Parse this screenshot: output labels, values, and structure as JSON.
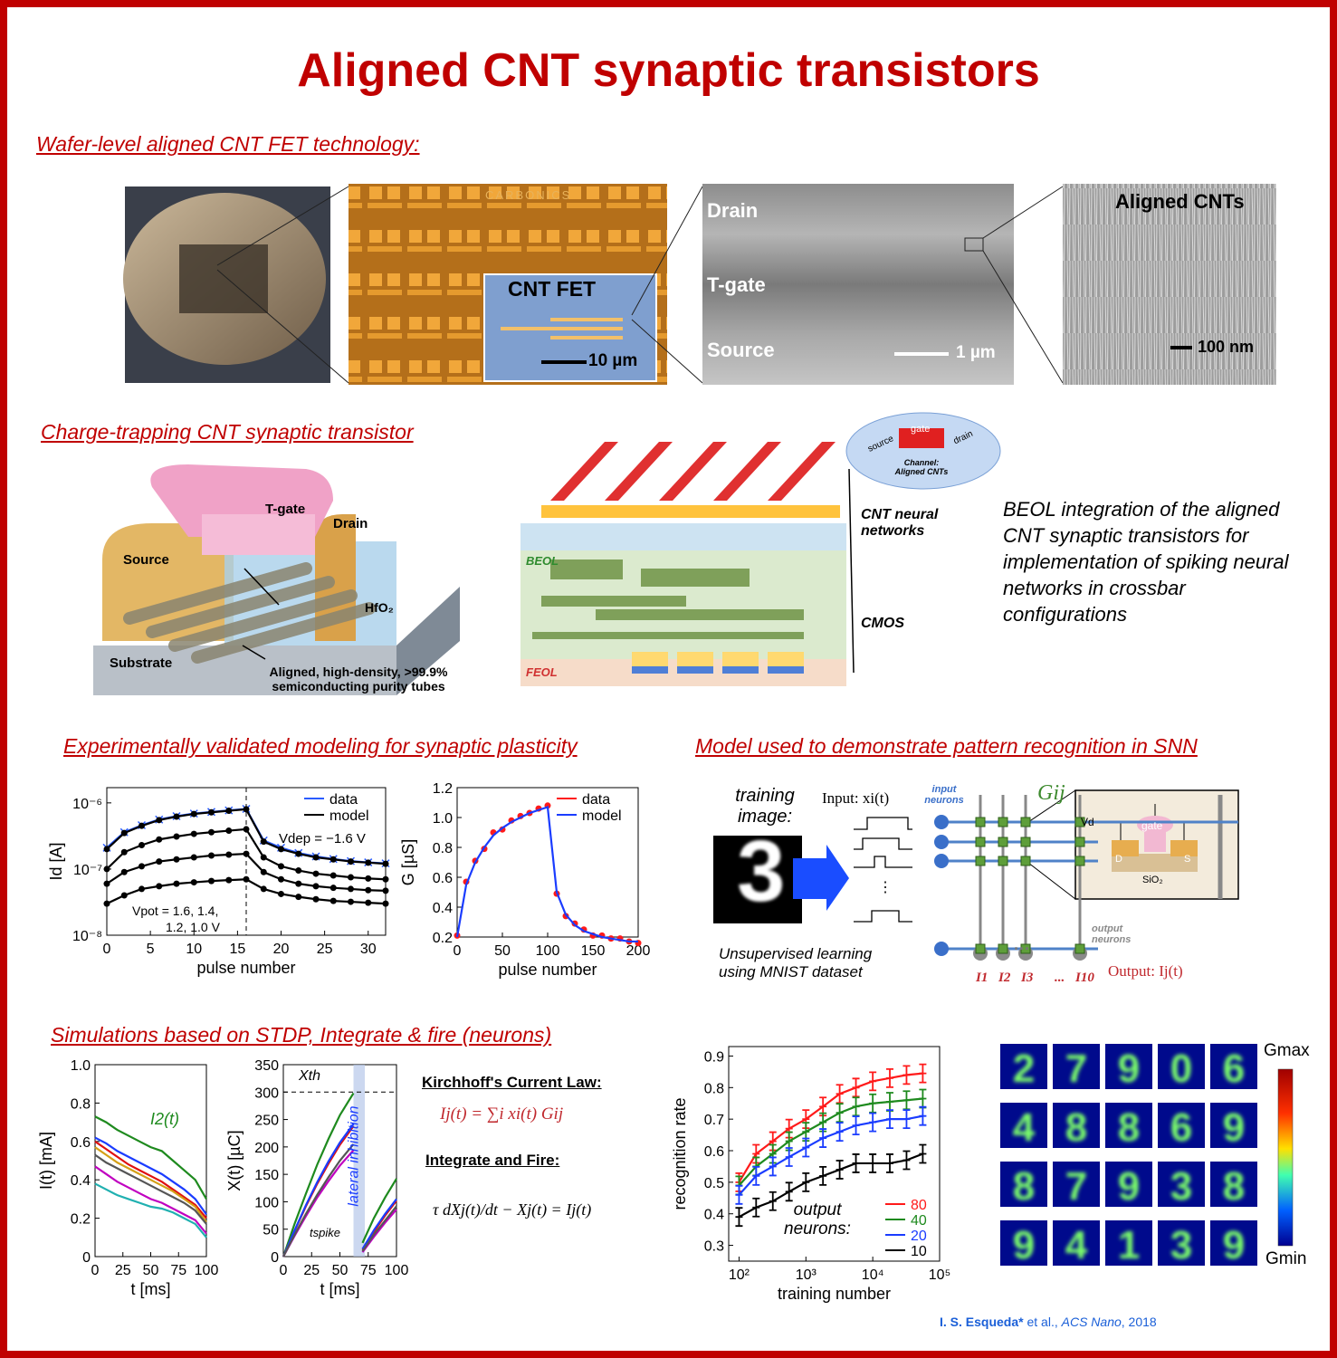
{
  "title": "Aligned CNT synaptic transistors",
  "sections": [
    "Wafer-level aligned CNT FET technology:",
    "Charge-trapping CNT synaptic transistor",
    "Experimentally validated modeling for synaptic plasticity",
    "Model used to demonstrate pattern recognition in SNN",
    "Simulations based on STDP, Integrate & fire (neurons)"
  ],
  "micrographs": {
    "chip_brand": "CARBONICS",
    "inset_title": "CNT FET",
    "inset_scale": "10 µm",
    "sem_drain": "Drain",
    "sem_gate": "T-gate",
    "sem_source": "Source",
    "sem_scale": "1 µm",
    "cnt_title": "Aligned CNTs",
    "cnt_scale": "100 nm"
  },
  "device": {
    "gate": "T-gate",
    "drain": "Drain",
    "source": "Source",
    "oxide": "HfO₂",
    "substrate": "Substrate",
    "tubes": "Aligned, high-density, >99.9% semiconducting purity tubes"
  },
  "integration": {
    "source": "source",
    "gate": "gate",
    "drain": "drain",
    "channel": "Channel: Aligned CNTs",
    "cnt_layer": "CNT neural networks",
    "beol": "BEOL",
    "cmos": "CMOS",
    "feol": "FEOL",
    "description": "BEOL integration of the aligned CNT synaptic transistors for implementation of spiking neural networks in crossbar configurations"
  },
  "plots": {
    "id": {
      "type": "line",
      "ylog": true,
      "xlabel": "pulse number",
      "ylabel": "Id [A]",
      "xlim": [
        0,
        32
      ],
      "ylim": [
        1e-08,
        1.7e-06
      ],
      "xticks": [
        0,
        5,
        10,
        15,
        20,
        25,
        30
      ],
      "yticks": [
        {
          "value": 1e-08,
          "label": "10⁻⁸"
        },
        {
          "value": 1e-07,
          "label": "10⁻⁷"
        },
        {
          "value": 1e-06,
          "label": "10⁻⁶"
        }
      ],
      "vline": 16,
      "legend": "top-right",
      "annotations": [
        "Vdep = −1.6 V",
        "Vpot = 1.6, 1.4,",
        "1.2, 1.0 V"
      ],
      "x": [
        0,
        2,
        4,
        6,
        8,
        10,
        12,
        14,
        16,
        18,
        20,
        22,
        24,
        26,
        28,
        30,
        32
      ],
      "series": [
        {
          "name": "data",
          "color": "#2a5cff",
          "marker": "x",
          "values": [
            2.1e-07,
            3.6e-07,
            4.6e-07,
            5.6e-07,
            6.3e-07,
            6.9e-07,
            7.3e-07,
            7.7e-07,
            8.1e-07,
            2.7e-07,
            2.1e-07,
            1.75e-07,
            1.55e-07,
            1.42e-07,
            1.32e-07,
            1.26e-07,
            1.22e-07
          ]
        },
        {
          "name": "model",
          "color": "#000000",
          "marker": "dot",
          "values": [
            2e-07,
            3.5e-07,
            4.5e-07,
            5.5e-07,
            6.2e-07,
            6.8e-07,
            7.2e-07,
            7.6e-07,
            8e-07,
            2.6e-07,
            2e-07,
            1.7e-07,
            1.5e-07,
            1.4e-07,
            1.3e-07,
            1.25e-07,
            1.2e-07
          ]
        },
        {
          "color": "#000000",
          "marker": "dot",
          "values": [
            1e-07,
            1.8e-07,
            2.3e-07,
            2.8e-07,
            3.1e-07,
            3.4e-07,
            3.6e-07,
            3.8e-07,
            4e-07,
            1.5e-07,
            1.1e-07,
            9.5e-08,
            8.5e-08,
            8e-08,
            7.5e-08,
            7.2e-08,
            7e-08
          ]
        },
        {
          "color": "#000000",
          "marker": "dot",
          "values": [
            6e-08,
            9e-08,
            1.1e-07,
            1.3e-07,
            1.4e-07,
            1.5e-07,
            1.6e-07,
            1.65e-07,
            1.7e-07,
            9e-08,
            7e-08,
            6e-08,
            5.5e-08,
            5.2e-08,
            5e-08,
            4.8e-08,
            4.7e-08
          ]
        },
        {
          "color": "#000000",
          "marker": "dot",
          "values": [
            3e-08,
            4e-08,
            5e-08,
            5.5e-08,
            6e-08,
            6.3e-08,
            6.6e-08,
            6.8e-08,
            7e-08,
            5e-08,
            4.2e-08,
            3.8e-08,
            3.5e-08,
            3.3e-08,
            3.2e-08,
            3.1e-08,
            3e-08
          ]
        }
      ]
    },
    "g": {
      "type": "line",
      "xlabel": "pulse number",
      "ylabel": "G [µS]",
      "xlim": [
        0,
        200
      ],
      "ylim": [
        0.2,
        1.2
      ],
      "xticks": [
        0,
        50,
        100,
        150,
        200
      ],
      "yticks": [
        0.2,
        0.4,
        0.6,
        0.8,
        {
          "value": 1,
          "label": "1.0"
        },
        1.2
      ],
      "legend": "top-right",
      "x": [
        0,
        10,
        20,
        30,
        40,
        50,
        60,
        70,
        80,
        90,
        100,
        110,
        120,
        130,
        140,
        150,
        160,
        170,
        180,
        190,
        200
      ],
      "series": [
        {
          "name": "data",
          "color": "#ff1a1a",
          "marker": "dot",
          "line": false,
          "values": [
            0.21,
            0.57,
            0.71,
            0.79,
            0.9,
            0.92,
            0.98,
            1.01,
            1.03,
            1.06,
            1.08,
            0.49,
            0.34,
            0.29,
            0.25,
            0.21,
            0.21,
            0.19,
            0.19,
            0.17,
            0.16
          ]
        },
        {
          "name": "model",
          "color": "#1a3cff",
          "values": [
            0.2,
            0.55,
            0.7,
            0.8,
            0.88,
            0.93,
            0.97,
            1.0,
            1.03,
            1.05,
            1.07,
            0.5,
            0.35,
            0.28,
            0.24,
            0.22,
            0.2,
            0.19,
            0.18,
            0.17,
            0.17
          ]
        }
      ]
    },
    "current": {
      "type": "line",
      "xlabel": "t [ms]",
      "ylabel": "I(t) [mA]",
      "xlim": [
        0,
        100
      ],
      "ylim": [
        0,
        1
      ],
      "xticks": [
        0,
        25,
        50,
        75,
        100
      ],
      "yticks": [
        0,
        0.2,
        0.4,
        0.6,
        0.8,
        {
          "value": 1,
          "label": "1.0"
        }
      ],
      "annotations": [
        "I2(t)"
      ],
      "x": [
        0,
        10,
        20,
        30,
        40,
        50,
        60,
        70,
        80,
        90,
        100
      ],
      "series": [
        {
          "color": "#1e8a1e",
          "values": [
            0.73,
            0.7,
            0.66,
            0.63,
            0.6,
            0.57,
            0.55,
            0.5,
            0.45,
            0.4,
            0.3
          ]
        },
        {
          "color": "#1a3cff",
          "values": [
            0.62,
            0.59,
            0.55,
            0.52,
            0.49,
            0.46,
            0.43,
            0.39,
            0.35,
            0.3,
            0.22
          ]
        },
        {
          "color": "#e01010",
          "values": [
            0.6,
            0.56,
            0.52,
            0.48,
            0.45,
            0.42,
            0.39,
            0.35,
            0.31,
            0.27,
            0.2
          ]
        },
        {
          "color": "#d4a017",
          "values": [
            0.57,
            0.53,
            0.49,
            0.46,
            0.43,
            0.4,
            0.37,
            0.34,
            0.3,
            0.26,
            0.18
          ]
        },
        {
          "color": "#555555",
          "values": [
            0.53,
            0.49,
            0.46,
            0.43,
            0.4,
            0.37,
            0.34,
            0.31,
            0.28,
            0.24,
            0.17
          ]
        },
        {
          "color": "#c000c0",
          "values": [
            0.47,
            0.43,
            0.39,
            0.36,
            0.33,
            0.3,
            0.28,
            0.25,
            0.22,
            0.19,
            0.12
          ]
        },
        {
          "color": "#20b0b0",
          "values": [
            0.38,
            0.35,
            0.32,
            0.3,
            0.28,
            0.26,
            0.25,
            0.23,
            0.2,
            0.17,
            0.1
          ]
        }
      ]
    },
    "charge": {
      "type": "line",
      "xlabel": "t [ms]",
      "ylabel": "X(t) [µC]",
      "xlim": [
        0,
        100
      ],
      "ylim": [
        0,
        350
      ],
      "xticks": [
        0,
        25,
        50,
        75,
        100
      ],
      "yticks": [
        0,
        50,
        100,
        150,
        200,
        250,
        300,
        350
      ],
      "threshold": 300,
      "annotations": [
        "Xth",
        "tspike",
        "lateral inhibition"
      ],
      "x": [
        0,
        10,
        20,
        30,
        40,
        50,
        62,
        64,
        70,
        80,
        90,
        100
      ],
      "series": [
        {
          "color": "#1e8a1e",
          "values": [
            0,
            60,
            115,
            168,
            215,
            258,
            298,
            null,
            25,
            70,
            108,
            142
          ]
        },
        {
          "color": "#e01010",
          "values": [
            0,
            47,
            92,
            133,
            170,
            204,
            238,
            null,
            12,
            45,
            75,
            102
          ]
        },
        {
          "color": "#1a3cff",
          "values": [
            0,
            48,
            94,
            136,
            174,
            208,
            242,
            null,
            14,
            48,
            78,
            105
          ]
        },
        {
          "color": "#c000c0",
          "values": [
            0,
            38,
            74,
            108,
            138,
            166,
            194,
            null,
            8,
            36,
            62,
            86
          ]
        },
        {
          "color": "#555555",
          "values": [
            0,
            40,
            78,
            113,
            145,
            175,
            205,
            null,
            10,
            40,
            66,
            92
          ]
        }
      ]
    },
    "recognition": {
      "type": "line",
      "xlog": true,
      "xlabel": "training number",
      "ylabel": "recognition rate",
      "xlim": [
        70,
        100000
      ],
      "ylim": [
        0.25,
        0.93
      ],
      "xticks": [
        {
          "value": 100,
          "label": "10²"
        },
        {
          "value": 1000,
          "label": "10³"
        },
        {
          "value": 10000,
          "label": "10⁴"
        },
        {
          "value": 100000,
          "label": "10⁵"
        }
      ],
      "yticks": [
        0.3,
        0.4,
        0.5,
        0.6,
        0.7,
        0.8,
        0.9
      ],
      "legend": "bottom-right",
      "annotations": [
        "output neurons:"
      ],
      "x": [
        100,
        180,
        320,
        560,
        1000,
        1800,
        3200,
        5600,
        10000,
        18000,
        32000,
        56000
      ],
      "series": [
        {
          "name": "80",
          "color": "#ff1a1a",
          "marker": "bar",
          "values": [
            0.5,
            0.59,
            0.63,
            0.67,
            0.7,
            0.74,
            0.78,
            0.8,
            0.82,
            0.83,
            0.84,
            0.845
          ]
        },
        {
          "name": "40",
          "color": "#1e8a1e",
          "marker": "bar",
          "values": [
            0.49,
            0.55,
            0.59,
            0.63,
            0.66,
            0.69,
            0.72,
            0.74,
            0.75,
            0.755,
            0.76,
            0.765
          ]
        },
        {
          "name": "20",
          "color": "#1a3cff",
          "marker": "bar",
          "values": [
            0.46,
            0.52,
            0.55,
            0.58,
            0.61,
            0.64,
            0.66,
            0.68,
            0.69,
            0.7,
            0.7,
            0.71
          ]
        },
        {
          "name": "10",
          "color": "#000000",
          "marker": "bar",
          "values": [
            0.39,
            0.42,
            0.44,
            0.47,
            0.5,
            0.52,
            0.54,
            0.56,
            0.56,
            0.56,
            0.57,
            0.59
          ]
        }
      ]
    }
  },
  "snn": {
    "training": "training image:",
    "digit": "3",
    "input": "Input: xi(t)",
    "dots": "⋮",
    "input_neurons": "input neurons",
    "weight": "Gij",
    "vd": "Vd",
    "gate": "gate",
    "d": "D",
    "s": "S",
    "oxide": "SiO₂",
    "output_neurons": "output neurons",
    "outputs": [
      "I1",
      "I2",
      "I3",
      "...",
      "I10"
    ],
    "output": "Output: Ij(t)",
    "ellipsis": "···",
    "caption": "Unsupervised learning using MNIST dataset"
  },
  "equations": {
    "kcl_title": "Kirchhoff's Current Law:",
    "kcl": "Ij(t) = ∑i xi(t) Gij",
    "if_title": "Integrate and Fire:",
    "if": "τ dXj(t)/dt − Xj(t) = Ij(t)"
  },
  "weights": {
    "rows": [
      [
        "2",
        "7",
        "9",
        "0",
        "6"
      ],
      [
        "4",
        "8",
        "8",
        "6",
        "9"
      ],
      [
        "8",
        "7",
        "9",
        "3",
        "8"
      ],
      [
        "9",
        "4",
        "1",
        "3",
        "9"
      ]
    ],
    "gmax": "Gmax",
    "gmin": "Gmin"
  },
  "citation": [
    "I. S. Esqueda*",
    " et al., ",
    "ACS Nano",
    ", 2018"
  ]
}
